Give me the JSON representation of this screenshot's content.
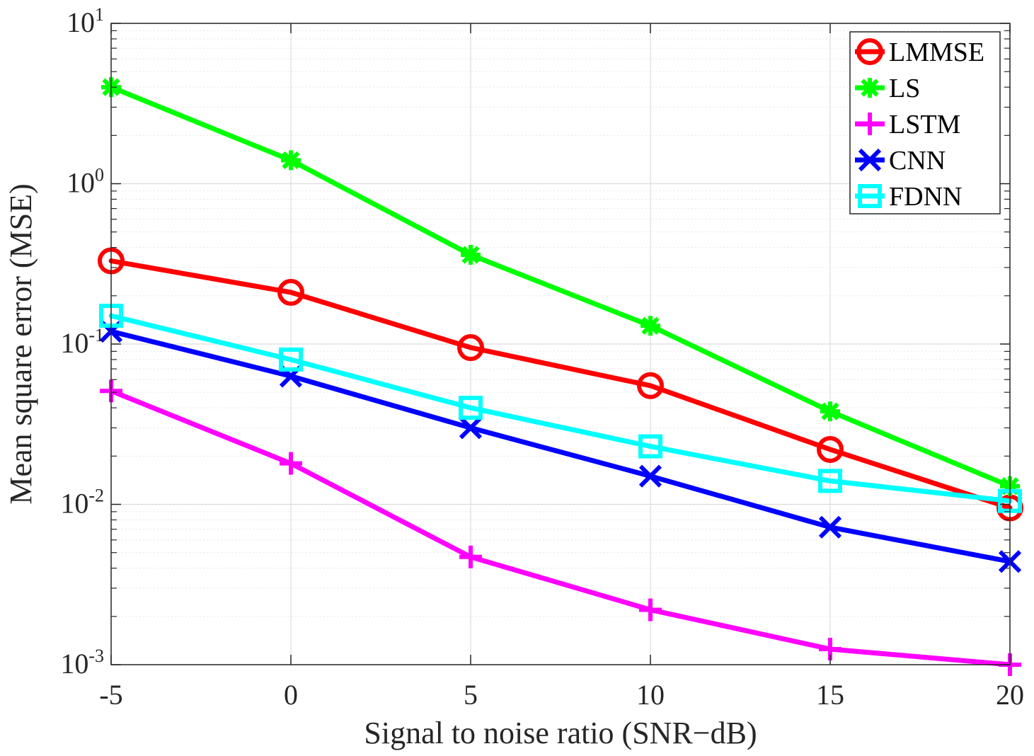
{
  "chart_data": {
    "type": "line",
    "title": "",
    "xlabel": "Signal to noise ratio (SNR−dB)",
    "ylabel": "Mean square error (MSE)",
    "x": [
      -5,
      0,
      5,
      10,
      15,
      20
    ],
    "xlim": [
      -5,
      20
    ],
    "ylim": [
      0.001,
      10
    ],
    "yscale": "log",
    "grid": true,
    "legend_position": "top-right",
    "x_ticks": [
      {
        "value": -5,
        "label": "-5"
      },
      {
        "value": 0,
        "label": "0"
      },
      {
        "value": 5,
        "label": "5"
      },
      {
        "value": 10,
        "label": "10"
      },
      {
        "value": 15,
        "label": "15"
      },
      {
        "value": 20,
        "label": "20"
      }
    ],
    "y_ticks": [
      {
        "value": 0.001,
        "base": "10",
        "exp": "-3"
      },
      {
        "value": 0.01,
        "base": "10",
        "exp": "-2"
      },
      {
        "value": 0.1,
        "base": "10",
        "exp": "-1"
      },
      {
        "value": 1,
        "base": "10",
        "exp": "0"
      },
      {
        "value": 10,
        "base": "10",
        "exp": "1"
      }
    ],
    "series": [
      {
        "name": "LMMSE",
        "color": "#ff0000",
        "marker": "circle",
        "values": [
          0.33,
          0.21,
          0.095,
          0.055,
          0.022,
          0.0095
        ]
      },
      {
        "name": "LS",
        "color": "#00ff00",
        "marker": "asterisk",
        "values": [
          4.0,
          1.4,
          0.36,
          0.13,
          0.038,
          0.013
        ]
      },
      {
        "name": "LSTM",
        "color": "#ff00ff",
        "marker": "plus",
        "values": [
          0.051,
          0.018,
          0.0047,
          0.0022,
          0.00125,
          0.001
        ]
      },
      {
        "name": "CNN",
        "color": "#0000ff",
        "marker": "x",
        "values": [
          0.12,
          0.063,
          0.03,
          0.015,
          0.0072,
          0.0044
        ]
      },
      {
        "name": "FDNN",
        "color": "#00ffff",
        "marker": "square",
        "values": [
          0.15,
          0.08,
          0.04,
          0.023,
          0.014,
          0.0105
        ]
      }
    ]
  }
}
